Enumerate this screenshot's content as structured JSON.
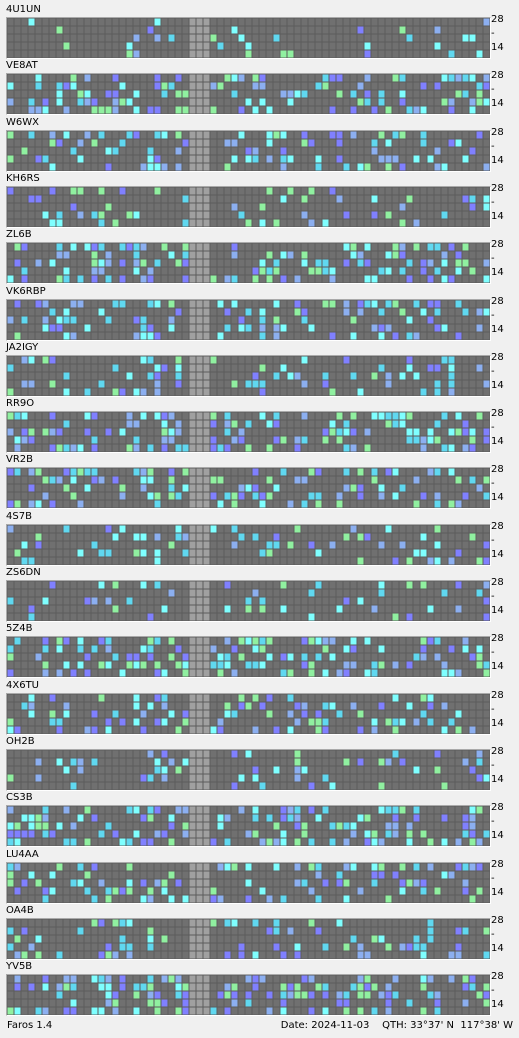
{
  "beacons": [
    {
      "callsign": "4U1UN"
    },
    {
      "callsign": "VE8AT"
    },
    {
      "callsign": "W6WX"
    },
    {
      "callsign": "KH6RS"
    },
    {
      "callsign": "ZL6B"
    },
    {
      "callsign": "VK6RBP"
    },
    {
      "callsign": "JA2IGY"
    },
    {
      "callsign": "RR9O"
    },
    {
      "callsign": "VR2B"
    },
    {
      "callsign": "4S7B"
    },
    {
      "callsign": "ZS6DN"
    },
    {
      "callsign": "5Z4B"
    },
    {
      "callsign": "4X6TU"
    },
    {
      "callsign": "OH2B"
    },
    {
      "callsign": "CS3B"
    },
    {
      "callsign": "LU4AA"
    },
    {
      "callsign": "OA4B"
    },
    {
      "callsign": "YV5B"
    }
  ],
  "bands": {
    "top": "28",
    "mid": "-",
    "bottom": "14"
  },
  "status": {
    "app": "Faros 1.4",
    "date_label": "Date:",
    "date": "2024-11-03",
    "qth_label": "QTH:",
    "qth": "33°37' N  117°38' W"
  },
  "colors": {
    "cell_empty": "#707070",
    "cell_strong": "#7fffff",
    "cell_good": "#60d8f0",
    "cell_med": "#8caff0",
    "cell_weak": "#8080ff",
    "cell_green": "#90f0a0",
    "gap": "#a0a0a0"
  }
}
